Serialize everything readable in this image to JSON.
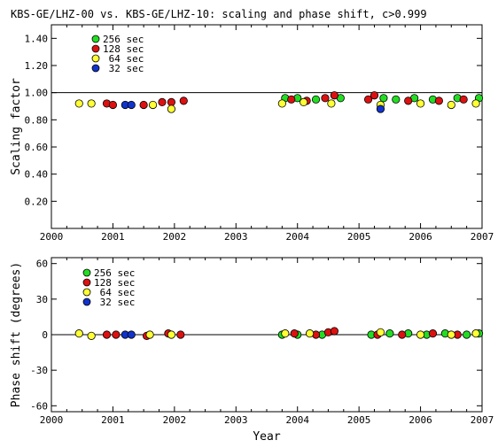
{
  "figure_title": "KBS-GE/LHZ-00 vs. KBS-GE/LHZ-10: scaling and phase shift, c>0.999",
  "legend": [
    {
      "label": "256 sec",
      "color": "#22dd22"
    },
    {
      "label": "128 sec",
      "color": "#dd1111"
    },
    {
      "label": " 64 sec",
      "color": "#ffff33"
    },
    {
      "label": " 32 sec",
      "color": "#1133cc"
    }
  ],
  "chart_data": [
    {
      "type": "scatter",
      "id": "scaling",
      "title": "",
      "xlabel": "",
      "ylabel": "Scaling factor",
      "xlim": [
        2000,
        2007
      ],
      "ylim": [
        0,
        1.5
      ],
      "xticks": [
        "2000",
        "2001",
        "2002",
        "2003",
        "2004",
        "2005",
        "2006",
        "2007"
      ],
      "yticks": [
        "0.20",
        "0.40",
        "0.60",
        "0.80",
        "1.00",
        "1.20",
        "1.40"
      ],
      "reference_line": 1.0,
      "series": [
        {
          "name": "256 sec",
          "points": [
            [
              2003.8,
              0.96
            ],
            [
              2004.0,
              0.96
            ],
            [
              2004.3,
              0.95
            ],
            [
              2004.7,
              0.96
            ],
            [
              2005.4,
              0.96
            ],
            [
              2005.6,
              0.95
            ],
            [
              2005.9,
              0.96
            ],
            [
              2006.2,
              0.95
            ],
            [
              2006.6,
              0.96
            ],
            [
              2006.95,
              0.96
            ]
          ]
        },
        {
          "name": "128 sec",
          "points": [
            [
              2000.9,
              0.92
            ],
            [
              2001.0,
              0.91
            ],
            [
              2001.5,
              0.91
            ],
            [
              2001.8,
              0.93
            ],
            [
              2001.95,
              0.93
            ],
            [
              2002.15,
              0.94
            ],
            [
              2003.9,
              0.95
            ],
            [
              2004.15,
              0.94
            ],
            [
              2004.45,
              0.96
            ],
            [
              2004.6,
              0.98
            ],
            [
              2005.15,
              0.95
            ],
            [
              2005.25,
              0.98
            ],
            [
              2005.8,
              0.94
            ],
            [
              2006.3,
              0.94
            ],
            [
              2006.7,
              0.95
            ]
          ]
        },
        {
          "name": "64 sec",
          "points": [
            [
              2000.45,
              0.92
            ],
            [
              2000.65,
              0.92
            ],
            [
              2001.65,
              0.91
            ],
            [
              2001.95,
              0.88
            ],
            [
              2003.75,
              0.92
            ],
            [
              2004.1,
              0.93
            ],
            [
              2004.55,
              0.92
            ],
            [
              2005.35,
              0.91
            ],
            [
              2006.0,
              0.92
            ],
            [
              2006.5,
              0.91
            ],
            [
              2006.9,
              0.92
            ]
          ]
        },
        {
          "name": "32 sec",
          "points": [
            [
              2001.2,
              0.91
            ],
            [
              2001.3,
              0.91
            ],
            [
              2005.35,
              0.88
            ]
          ]
        }
      ]
    },
    {
      "type": "scatter",
      "id": "phase",
      "title": "",
      "xlabel": "Year",
      "ylabel": "Phase shift (degrees)",
      "xlim": [
        2000,
        2007
      ],
      "ylim": [
        -65,
        65
      ],
      "xticks": [
        "2000",
        "2001",
        "2002",
        "2003",
        "2004",
        "2005",
        "2006",
        "2007"
      ],
      "yticks": [
        "-60",
        "-30",
        "0",
        "30",
        "60"
      ],
      "reference_line": 0,
      "series": [
        {
          "name": "256 sec",
          "points": [
            [
              2003.75,
              0
            ],
            [
              2004.0,
              0
            ],
            [
              2004.4,
              0
            ],
            [
              2005.2,
              0
            ],
            [
              2005.5,
              1
            ],
            [
              2005.8,
              1
            ],
            [
              2006.1,
              0
            ],
            [
              2006.4,
              1
            ],
            [
              2006.75,
              0
            ],
            [
              2006.95,
              1
            ]
          ]
        },
        {
          "name": "128 sec",
          "points": [
            [
              2000.9,
              0
            ],
            [
              2001.05,
              0
            ],
            [
              2001.55,
              -1
            ],
            [
              2001.9,
              1
            ],
            [
              2002.1,
              0
            ],
            [
              2003.95,
              1
            ],
            [
              2004.3,
              0
            ],
            [
              2004.5,
              2
            ],
            [
              2004.6,
              3
            ],
            [
              2005.3,
              0
            ],
            [
              2005.7,
              0
            ],
            [
              2006.2,
              1
            ],
            [
              2006.6,
              0
            ]
          ]
        },
        {
          "name": "64 sec",
          "points": [
            [
              2000.45,
              1
            ],
            [
              2000.65,
              -1
            ],
            [
              2001.6,
              0
            ],
            [
              2001.95,
              0
            ],
            [
              2003.8,
              1
            ],
            [
              2004.2,
              1
            ],
            [
              2005.35,
              2
            ],
            [
              2006.0,
              0
            ],
            [
              2006.5,
              0
            ],
            [
              2006.9,
              1
            ]
          ]
        },
        {
          "name": "32 sec",
          "points": [
            [
              2001.2,
              0
            ],
            [
              2001.3,
              0
            ]
          ]
        }
      ]
    }
  ]
}
